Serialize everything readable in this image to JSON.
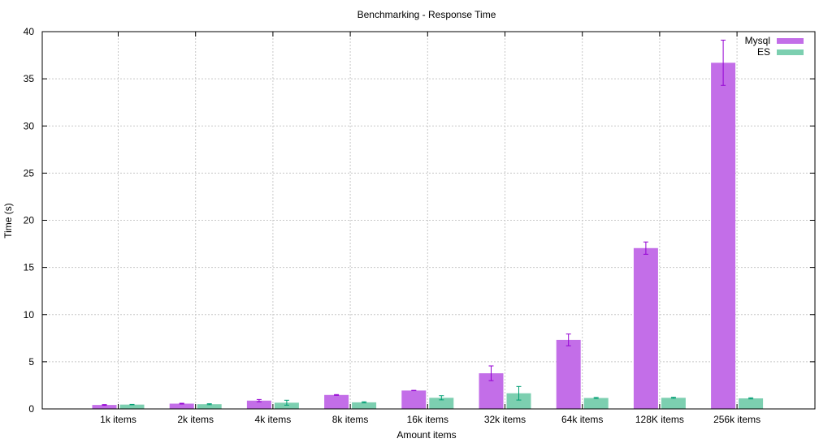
{
  "chart_data": {
    "type": "bar",
    "title": "Benchmarking - Response Time",
    "xlabel": "Amount items",
    "ylabel": "Time (s)",
    "ylim": [
      0,
      40
    ],
    "yticks": [
      "0",
      "5",
      "10",
      "15",
      "20",
      "25",
      "30",
      "35",
      "40"
    ],
    "grid": true,
    "legend_position": "top-right",
    "categories": [
      "1k items",
      "2k items",
      "4k items",
      "8k items",
      "16k items",
      "32k items",
      "64k items",
      "128K items",
      "256k items"
    ],
    "series": [
      {
        "name": "Mysql",
        "color": "#c36ee8",
        "error_color": "#9400d3",
        "values": [
          0.42,
          0.56,
          0.88,
          1.48,
          1.95,
          3.78,
          7.32,
          17.05,
          36.7
        ],
        "error_low": [
          0.38,
          0.52,
          0.76,
          1.44,
          1.93,
          3.0,
          6.7,
          16.4,
          34.3
        ],
        "error_high": [
          0.46,
          0.6,
          1.0,
          1.52,
          1.97,
          4.56,
          7.94,
          17.7,
          39.1
        ]
      },
      {
        "name": "ES",
        "color": "#7ccfb0",
        "error_color": "#009e73",
        "values": [
          0.46,
          0.5,
          0.66,
          0.7,
          1.18,
          1.66,
          1.16,
          1.18,
          1.12
        ],
        "error_low": [
          0.44,
          0.45,
          0.4,
          0.64,
          0.96,
          0.94,
          1.1,
          1.12,
          1.06
        ],
        "error_high": [
          0.48,
          0.55,
          0.92,
          0.76,
          1.4,
          2.38,
          1.22,
          1.24,
          1.18
        ]
      }
    ]
  }
}
